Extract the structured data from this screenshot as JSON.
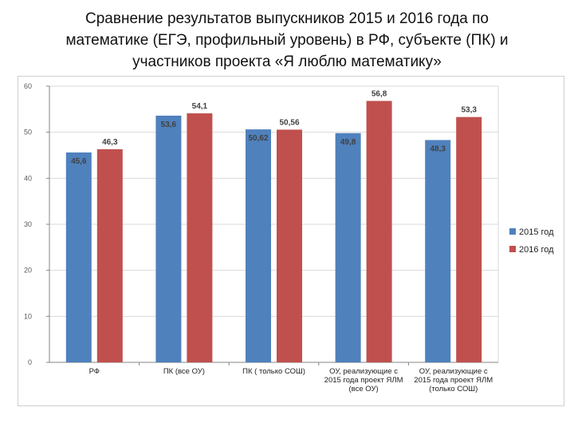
{
  "title_lines": [
    "Сравнение результатов  выпускников 2015 и 2016 года по",
    "математике (ЕГЭ, профильный уровень) в РФ, субъекте (ПК) и",
    "участников проекта «Я люблю математику»"
  ],
  "colors": {
    "s2015": "#4f81bd",
    "s2016": "#c0504d",
    "grid": "#d9d9d9",
    "axis": "#868686"
  },
  "chart_data": {
    "type": "bar",
    "ylim": [
      0,
      60
    ],
    "yticks": [
      "0",
      "10",
      "20",
      "30",
      "40",
      "50",
      "60"
    ],
    "grid": true,
    "legend_position": "right",
    "categories": [
      [
        "РФ"
      ],
      [
        "ПК (все ОУ)"
      ],
      [
        "ПК ( только СОШ)"
      ],
      [
        "ОУ, реализующие с",
        "2015 года проект ЯЛМ",
        "(все ОУ)"
      ],
      [
        "ОУ, реализующие с",
        "2015 года проект ЯЛМ",
        "(только СОШ)"
      ]
    ],
    "series": [
      {
        "name": "2015 год",
        "values": [
          45.6,
          53.6,
          50.62,
          49.8,
          48.3
        ],
        "labels": [
          "45,6",
          "53,6",
          "50,62",
          "49,8",
          "48,3"
        ]
      },
      {
        "name": "2016 год",
        "values": [
          46.3,
          54.1,
          50.56,
          56.8,
          53.3
        ],
        "labels": [
          "46,3",
          "54,1",
          "50,56",
          "56,8",
          "53,3"
        ]
      }
    ]
  }
}
